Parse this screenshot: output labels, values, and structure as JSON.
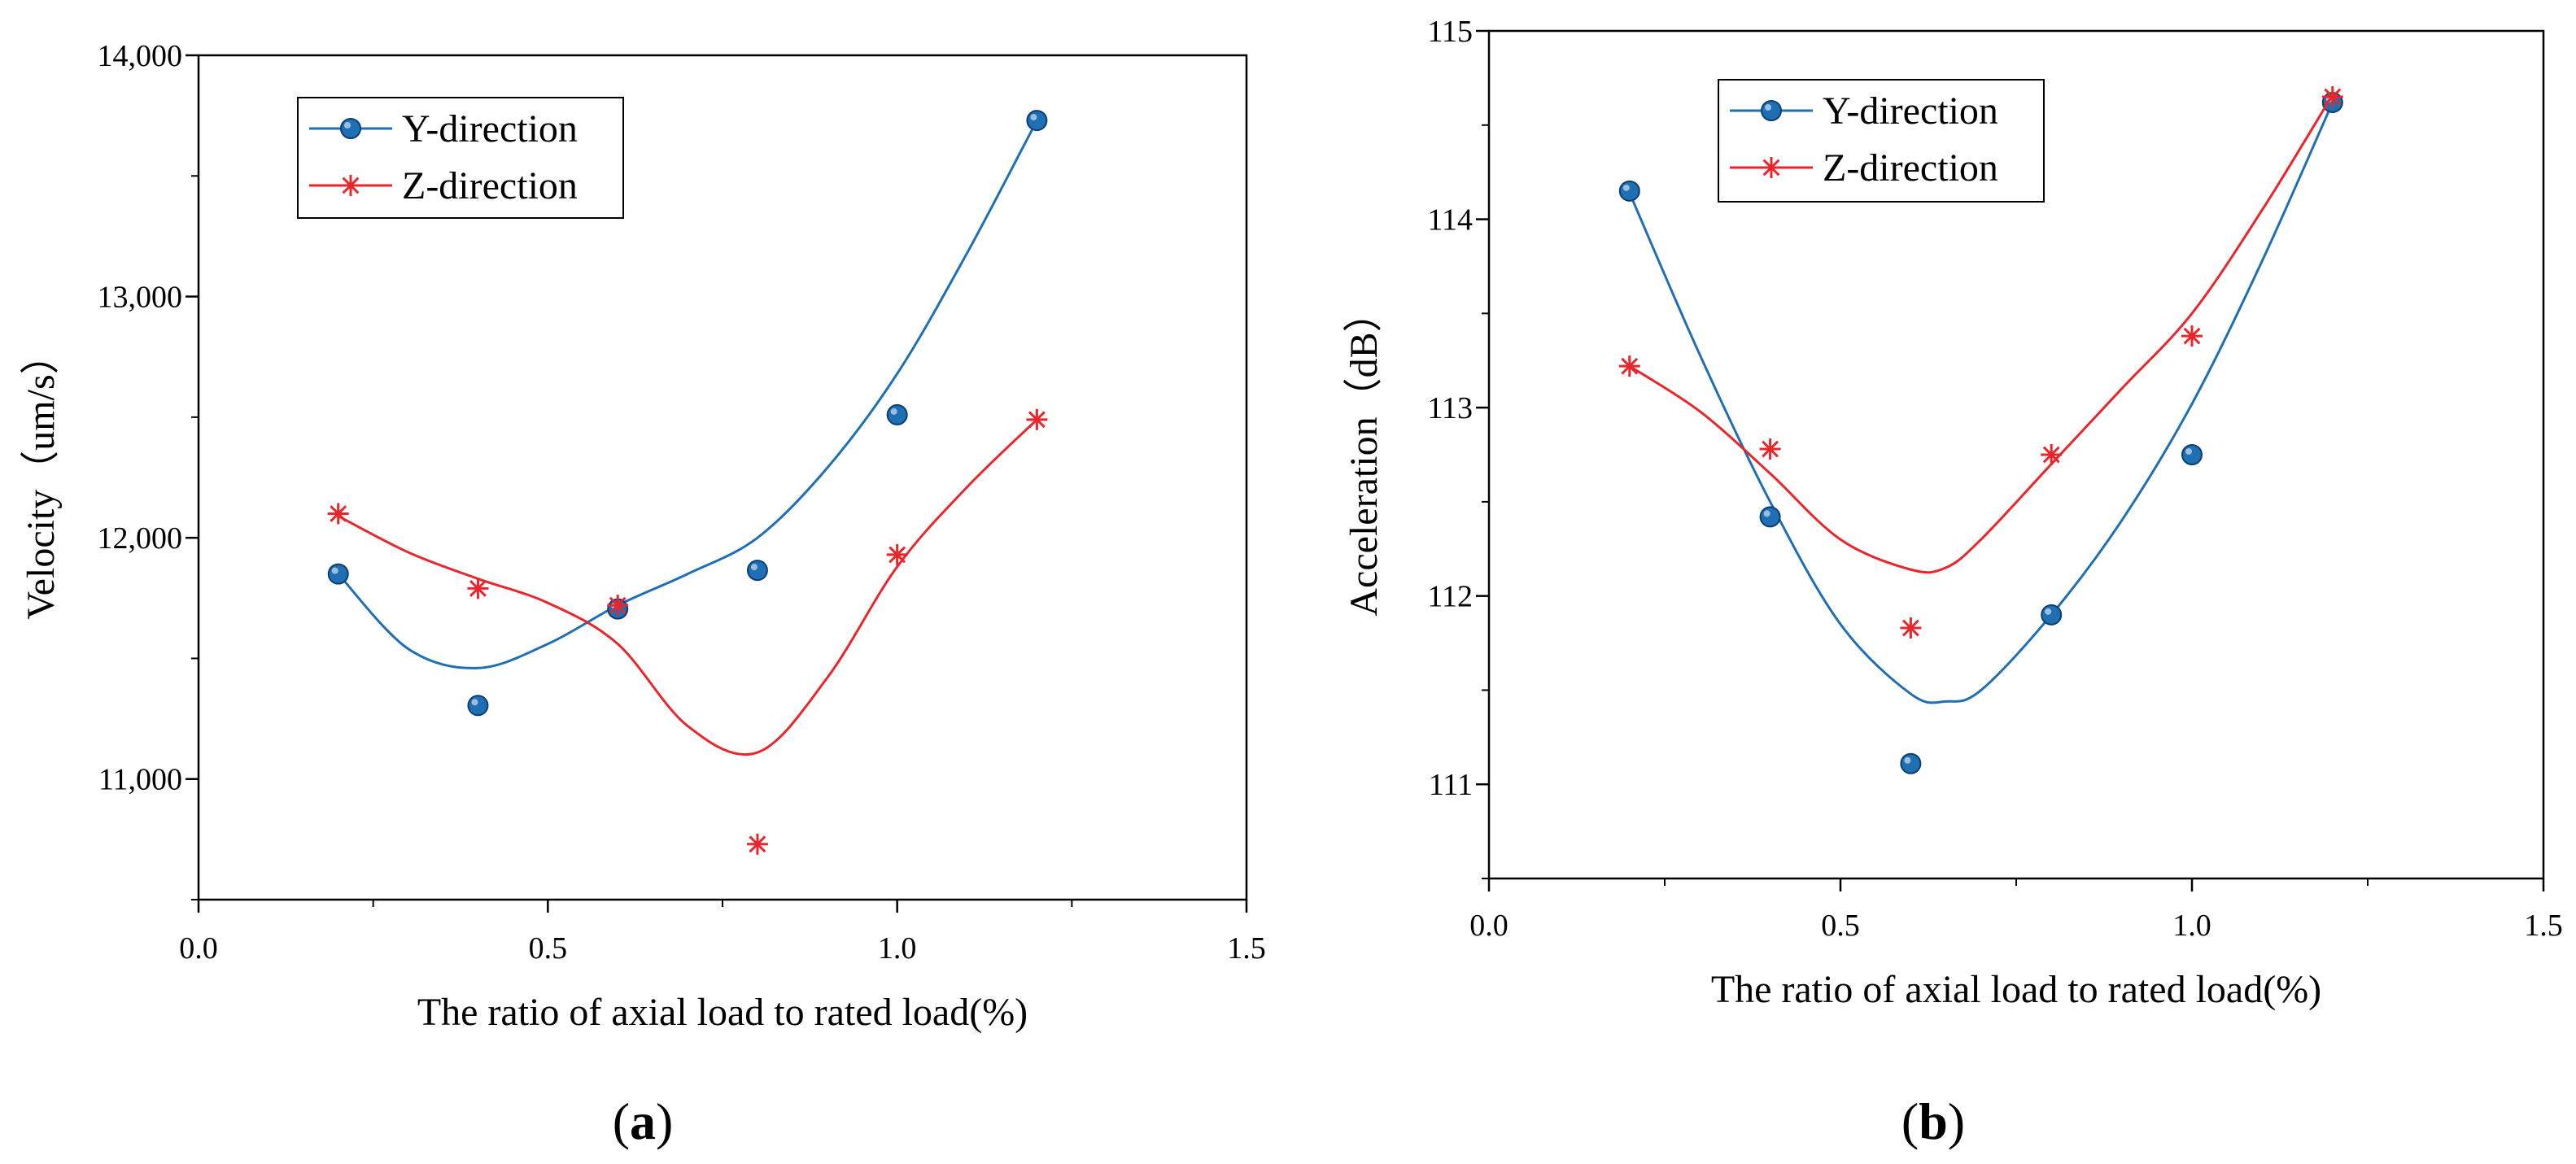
{
  "chart_data": [
    {
      "type": "scatter",
      "panel_label": {
        "open": "(",
        "letter": "a",
        "close": ")"
      },
      "xlabel": "The ratio of axial load to rated load(%)",
      "ylabel": "Velocity（um/s）",
      "xlim": [
        0.0,
        1.5
      ],
      "ylim": [
        10500,
        14000
      ],
      "xticks": [
        0.0,
        0.5,
        1.0,
        1.5
      ],
      "xtick_labels": [
        "0.0",
        "0.5",
        "1.0",
        "1.5"
      ],
      "yticks": [
        11000,
        12000,
        13000,
        14000
      ],
      "ytick_labels": [
        "11,000",
        "12,000",
        "13,000",
        "14,000"
      ],
      "legend_position": "top-left",
      "series": [
        {
          "name": "Y-direction",
          "marker": "sphere",
          "color": "#1f6fb5",
          "x": [
            0.2,
            0.4,
            0.6,
            0.8,
            1.0,
            1.2
          ],
          "values": [
            11850,
            11305,
            11705,
            11865,
            12510,
            13730
          ],
          "fit": [
            [
              0.2,
              11850
            ],
            [
              0.3,
              11540
            ],
            [
              0.4,
              11460
            ],
            [
              0.5,
              11560
            ],
            [
              0.6,
              11720
            ],
            [
              0.7,
              11850
            ],
            [
              0.8,
              12000
            ],
            [
              0.9,
              12290
            ],
            [
              1.0,
              12680
            ],
            [
              1.1,
              13180
            ],
            [
              1.2,
              13730
            ]
          ]
        },
        {
          "name": "Z-direction",
          "marker": "asterisk",
          "color": "#e8262b",
          "x": [
            0.2,
            0.4,
            0.6,
            0.8,
            1.0,
            1.2
          ],
          "values": [
            12100,
            11790,
            11720,
            10730,
            11930,
            12490
          ],
          "fit": [
            [
              0.2,
              12090
            ],
            [
              0.3,
              11940
            ],
            [
              0.4,
              11830
            ],
            [
              0.5,
              11730
            ],
            [
              0.6,
              11560
            ],
            [
              0.7,
              11220
            ],
            [
              0.8,
              11110
            ],
            [
              0.9,
              11420
            ],
            [
              1.0,
              11880
            ],
            [
              1.1,
              12210
            ],
            [
              1.2,
              12490
            ]
          ]
        }
      ]
    },
    {
      "type": "scatter",
      "panel_label": {
        "open": "(",
        "letter": "b",
        "close": ")"
      },
      "xlabel": "The ratio of axial load to rated load(%)",
      "ylabel": "Acceleration（dB）",
      "xlim": [
        0.0,
        1.5
      ],
      "ylim": [
        110.5,
        115
      ],
      "xticks": [
        0.0,
        0.5,
        1.0,
        1.5
      ],
      "xtick_labels": [
        "0.0",
        "0.5",
        "1.0",
        "1.5"
      ],
      "yticks": [
        111,
        112,
        113,
        114,
        115
      ],
      "ytick_labels": [
        "111",
        "112",
        "113",
        "114",
        "115"
      ],
      "legend_position": "top-center",
      "series": [
        {
          "name": "Y-direction",
          "marker": "sphere",
          "color": "#1f6fb5",
          "x": [
            0.2,
            0.4,
            0.6,
            0.8,
            1.0,
            1.2
          ],
          "values": [
            114.15,
            112.42,
            111.11,
            111.9,
            112.75,
            114.62
          ],
          "fit": [
            [
              0.2,
              114.14
            ],
            [
              0.3,
              113.28
            ],
            [
              0.4,
              112.5
            ],
            [
              0.5,
              111.85
            ],
            [
              0.6,
              111.48
            ],
            [
              0.65,
              111.44
            ],
            [
              0.7,
              111.5
            ],
            [
              0.8,
              111.9
            ],
            [
              0.9,
              112.4
            ],
            [
              1.0,
              113.02
            ],
            [
              1.1,
              113.78
            ],
            [
              1.2,
              114.62
            ]
          ]
        },
        {
          "name": "Z-direction",
          "marker": "asterisk",
          "color": "#e8262b",
          "x": [
            0.2,
            0.4,
            0.6,
            0.8,
            1.0,
            1.2
          ],
          "values": [
            113.22,
            112.78,
            111.83,
            112.75,
            113.38,
            114.65
          ],
          "fit": [
            [
              0.2,
              113.22
            ],
            [
              0.3,
              112.98
            ],
            [
              0.4,
              112.65
            ],
            [
              0.5,
              112.3
            ],
            [
              0.6,
              112.14
            ],
            [
              0.65,
              112.15
            ],
            [
              0.7,
              112.3
            ],
            [
              0.8,
              112.7
            ],
            [
              0.9,
              113.1
            ],
            [
              1.0,
              113.5
            ],
            [
              1.1,
              114.05
            ],
            [
              1.2,
              114.66
            ]
          ]
        }
      ]
    }
  ]
}
